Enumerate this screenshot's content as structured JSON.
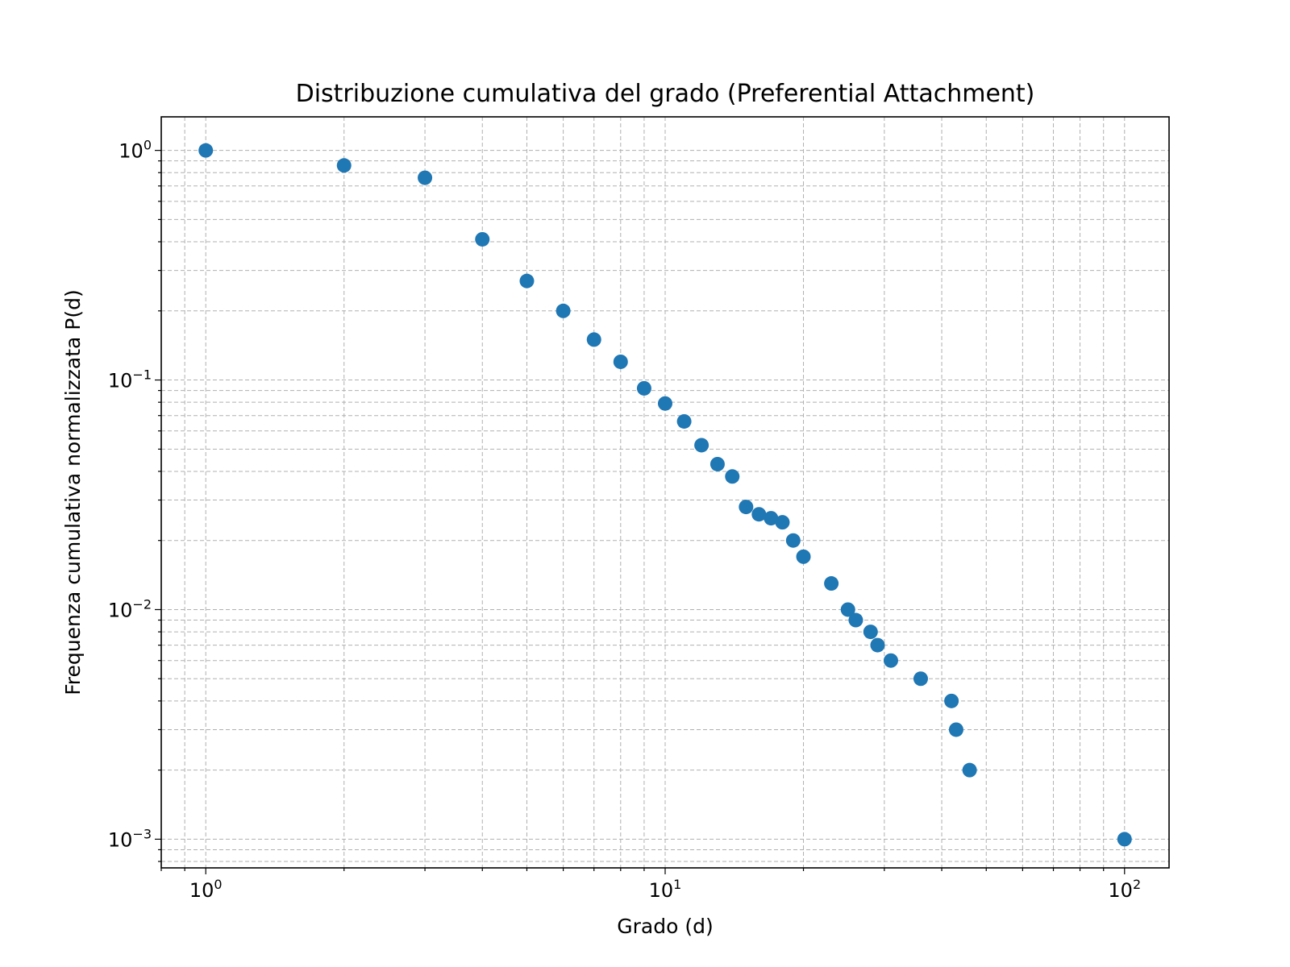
{
  "chart_data": {
    "type": "scatter",
    "title": "Distribuzione cumulativa del grado (Preferential Attachment)",
    "xlabel": "Grado (d)",
    "ylabel": "Frequenza cumulativa normalizzata P(d)",
    "x_scale": "log",
    "y_scale": "log",
    "xlim": [
      0.8,
      125
    ],
    "ylim": [
      0.00075,
      1.4
    ],
    "x_ticks": [
      {
        "value": 1,
        "base": "10",
        "exp": "0"
      },
      {
        "value": 10,
        "base": "10",
        "exp": "1"
      },
      {
        "value": 100,
        "base": "10",
        "exp": "2"
      }
    ],
    "y_ticks": [
      {
        "value": 1,
        "base": "10",
        "exp": "0"
      },
      {
        "value": 0.1,
        "base": "10",
        "exp": "−1"
      },
      {
        "value": 0.01,
        "base": "10",
        "exp": "−2"
      },
      {
        "value": 0.001,
        "base": "10",
        "exp": "−3"
      }
    ],
    "grid": true,
    "marker_color": "#1f77b4",
    "series": [
      {
        "x": [
          1,
          2,
          3,
          4,
          5,
          6,
          7,
          8,
          9,
          10,
          11,
          12,
          13,
          14,
          15,
          16,
          17,
          18,
          19,
          20,
          23,
          25,
          26,
          28,
          29,
          31,
          36,
          42,
          43,
          46,
          100
        ],
        "y": [
          1.0,
          0.86,
          0.76,
          0.41,
          0.27,
          0.2,
          0.15,
          0.12,
          0.092,
          0.079,
          0.066,
          0.052,
          0.043,
          0.038,
          0.028,
          0.026,
          0.025,
          0.024,
          0.02,
          0.017,
          0.013,
          0.01,
          0.009,
          0.008,
          0.007,
          0.006,
          0.005,
          0.004,
          0.003,
          0.002,
          0.001
        ]
      }
    ]
  }
}
